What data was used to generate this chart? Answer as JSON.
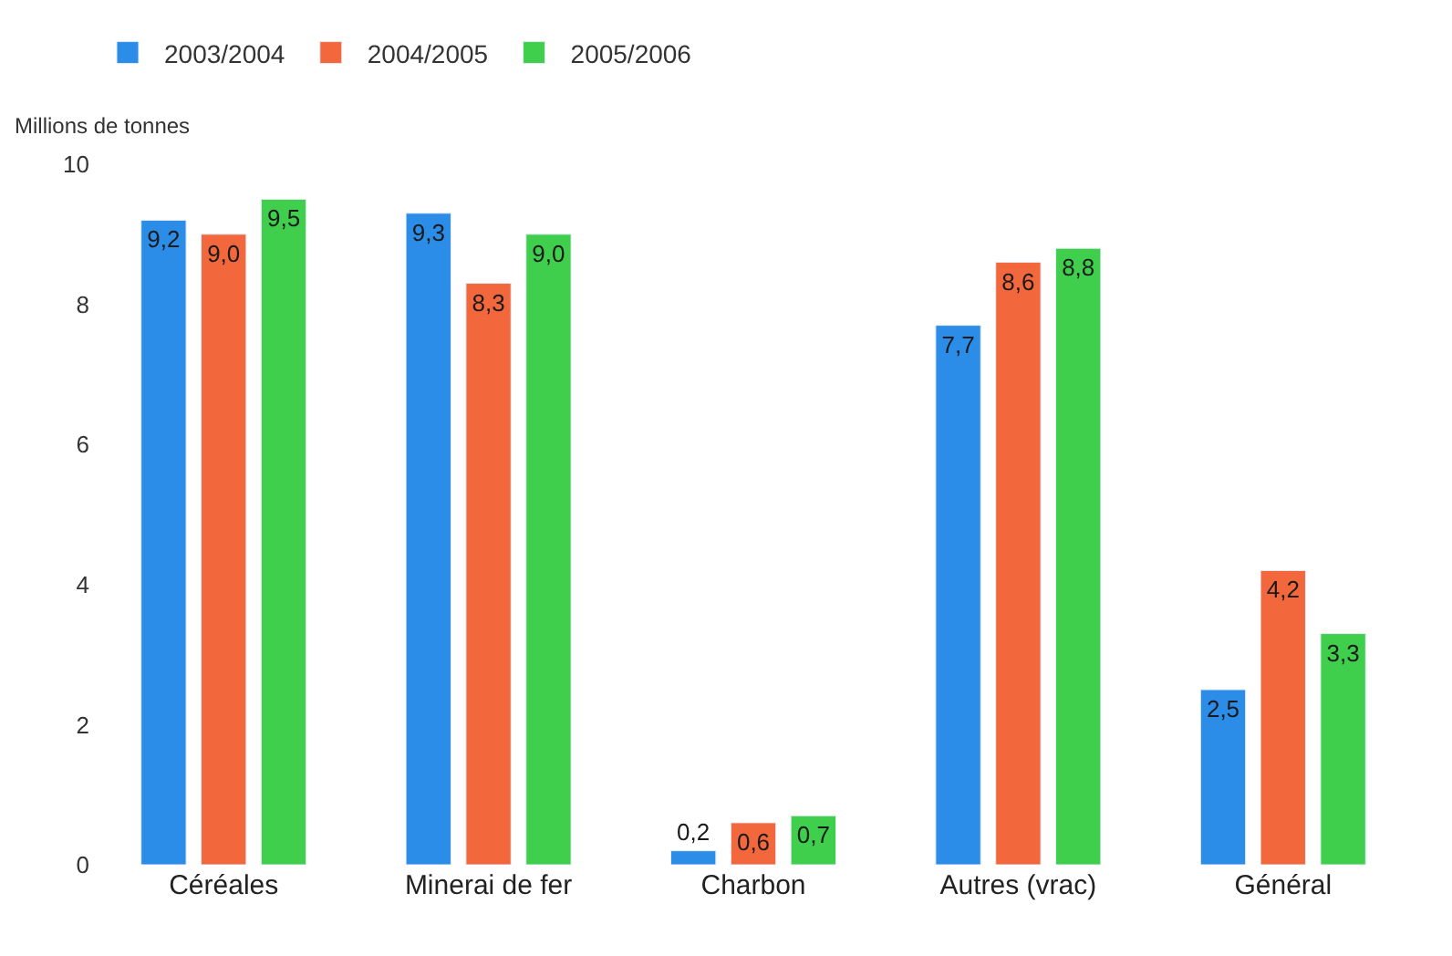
{
  "chart_data": {
    "type": "bar",
    "ylabel": "Millions de tonnes",
    "categories": [
      "Céréales",
      "Minerai de fer",
      "Charbon",
      "Autres (vrac)",
      "Général"
    ],
    "series": [
      {
        "name": "2003/2004",
        "color": "#2b8de8",
        "values": [
          9.2,
          9.3,
          0.2,
          7.7,
          2.5
        ],
        "value_labels": [
          "9,2",
          "9,3",
          "0,2",
          "7,7",
          "2,5"
        ]
      },
      {
        "name": "2004/2005",
        "color": "#f2683c",
        "values": [
          9.0,
          8.3,
          0.6,
          8.6,
          4.2
        ],
        "value_labels": [
          "9,0",
          "8,3",
          "0,6",
          "8,6",
          "4,2"
        ]
      },
      {
        "name": "2005/2006",
        "color": "#3fcf4c",
        "values": [
          9.5,
          9.0,
          0.7,
          8.8,
          3.3
        ],
        "value_labels": [
          "9,5",
          "9,0",
          "0,7",
          "8,8",
          "3,3"
        ]
      }
    ],
    "ylim": [
      0,
      10
    ],
    "yticks": [
      0,
      2,
      4,
      6,
      8,
      10
    ],
    "legend": "top left"
  }
}
